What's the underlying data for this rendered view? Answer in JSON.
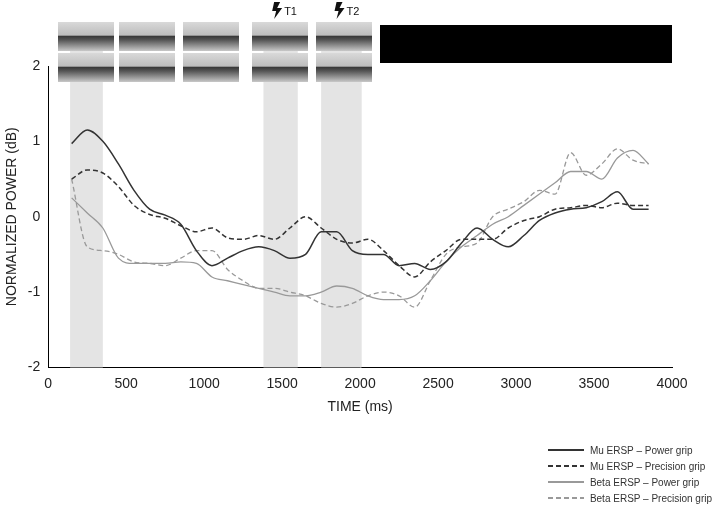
{
  "chart_data": {
    "type": "line",
    "x_label": "TIME (ms)",
    "y_label": "NORMALIZED POWER (dB)",
    "x": [
      150,
      250,
      350,
      450,
      550,
      650,
      750,
      850,
      950,
      1050,
      1150,
      1250,
      1350,
      1450,
      1550,
      1650,
      1750,
      1850,
      1950,
      2050,
      2150,
      2250,
      2350,
      2450,
      2550,
      2650,
      2750,
      2850,
      2950,
      3050,
      3150,
      3250,
      3350,
      3450,
      3550,
      3650,
      3750,
      3850
    ],
    "series": [
      {
        "name": "Mu ERSP – Power grip",
        "color": "#333333",
        "line_style": "solid",
        "values": [
          0.97,
          1.15,
          1.0,
          0.7,
          0.35,
          0.1,
          0.02,
          -0.1,
          -0.45,
          -0.65,
          -0.55,
          -0.45,
          -0.4,
          -0.45,
          -0.55,
          -0.5,
          -0.2,
          -0.2,
          -0.45,
          -0.5,
          -0.5,
          -0.65,
          -0.62,
          -0.7,
          -0.6,
          -0.35,
          -0.15,
          -0.3,
          -0.4,
          -0.25,
          -0.05,
          0.05,
          0.1,
          0.12,
          0.2,
          0.33,
          0.1,
          0.1
        ]
      },
      {
        "name": "Mu ERSP – Precision grip",
        "color": "#333333",
        "line_style": "dashed",
        "values": [
          0.5,
          0.62,
          0.58,
          0.4,
          0.15,
          0.03,
          -0.02,
          -0.12,
          -0.2,
          -0.15,
          -0.28,
          -0.3,
          -0.25,
          -0.3,
          -0.15,
          0.0,
          -0.15,
          -0.3,
          -0.35,
          -0.3,
          -0.45,
          -0.65,
          -0.8,
          -0.6,
          -0.45,
          -0.3,
          -0.3,
          -0.3,
          -0.15,
          -0.05,
          0.0,
          0.1,
          0.12,
          0.15,
          0.12,
          0.18,
          0.15,
          0.15
        ]
      },
      {
        "name": "Beta ERSP – Power grip",
        "color": "#999999",
        "line_style": "solid",
        "values": [
          0.25,
          0.05,
          -0.15,
          -0.55,
          -0.62,
          -0.62,
          -0.62,
          -0.6,
          -0.62,
          -0.8,
          -0.85,
          -0.9,
          -0.95,
          -1.0,
          -1.05,
          -1.05,
          -1.0,
          -0.92,
          -0.95,
          -1.05,
          -1.1,
          -1.1,
          -1.05,
          -0.85,
          -0.6,
          -0.4,
          -0.25,
          -0.1,
          0.0,
          0.15,
          0.3,
          0.45,
          0.6,
          0.6,
          0.5,
          0.78,
          0.88,
          0.7
        ]
      },
      {
        "name": "Beta ERSP – Precision grip",
        "color": "#999999",
        "line_style": "dashed",
        "values": [
          0.5,
          -0.4,
          -0.45,
          -0.5,
          -0.6,
          -0.62,
          -0.65,
          -0.55,
          -0.45,
          -0.45,
          -0.7,
          -0.85,
          -0.95,
          -0.95,
          -1.0,
          -1.05,
          -1.15,
          -1.2,
          -1.15,
          -1.05,
          -1.0,
          -1.05,
          -1.2,
          -0.85,
          -0.5,
          -0.4,
          -0.35,
          0.0,
          0.1,
          0.2,
          0.35,
          0.3,
          0.85,
          0.55,
          0.7,
          0.9,
          0.75,
          0.7
        ]
      }
    ],
    "xlim": [
      0,
      4000
    ],
    "xticks": [
      0,
      500,
      1000,
      1500,
      2000,
      2500,
      3000,
      3500,
      4000
    ],
    "ylim": [
      -2,
      2
    ],
    "yticks": [
      -2,
      -1,
      0,
      1,
      2
    ],
    "grid": false,
    "legend": "bottom-right",
    "shaded_intervals": [
      [
        140,
        350
      ],
      [
        1380,
        1600
      ],
      [
        1750,
        2010
      ]
    ],
    "annotations": [
      {
        "text": "T1",
        "x": 1500
      },
      {
        "text": "T2",
        "x": 1900
      }
    ]
  }
}
